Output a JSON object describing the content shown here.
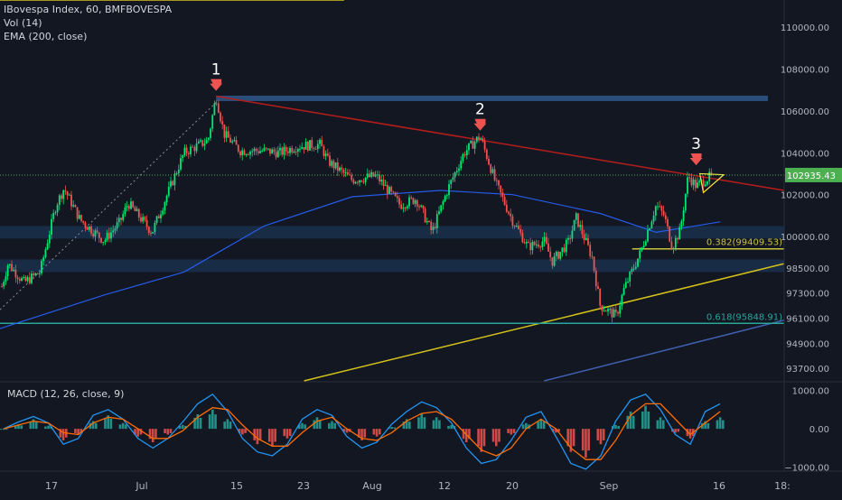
{
  "header": {
    "symbol_line": "IBovespa Index, 60, BMFBOVESPA",
    "vol_line": "Vol (14)",
    "ema_line": "EMA (200, close)"
  },
  "macd": {
    "label": "MACD (12, 26, close, 9)",
    "ticks": [
      {
        "label": "1000.00",
        "v": 1000
      },
      {
        "label": "0.00",
        "v": 0
      },
      {
        "label": "−1000.00",
        "v": -1000
      }
    ]
  },
  "price_axis": {
    "ticks": [
      {
        "label": "110000.00",
        "v": 110000
      },
      {
        "label": "108000.00",
        "v": 108000
      },
      {
        "label": "106000.00",
        "v": 106000
      },
      {
        "label": "104000.00",
        "v": 104000
      },
      {
        "label": "102000.00",
        "v": 102000
      },
      {
        "label": "100000.00",
        "v": 100000
      },
      {
        "label": "98500.00",
        "v": 98500
      },
      {
        "label": "97300.00",
        "v": 97300
      },
      {
        "label": "96100.00",
        "v": 96100
      },
      {
        "label": "94900.00",
        "v": 94900
      },
      {
        "label": "93700.00",
        "v": 93700
      }
    ],
    "current_price": "102935.43",
    "current_value": 102935.43,
    "current_color": "#4caf50"
  },
  "time_axis": {
    "labels": [
      "17",
      "Jul",
      "15",
      "23",
      "Aug",
      "12",
      "20",
      "Sep",
      "16",
      "18:"
    ]
  },
  "annotations": {
    "arrow1": "1",
    "arrow2": "2",
    "arrow3": "3",
    "fib_382": "0.382(99409.53)",
    "fib_618": "0.618(95848.91)",
    "arrow_color": "#ef5350"
  },
  "colors": {
    "background": "#131722",
    "up": "#4caf50",
    "down": "#ef5350",
    "accent_green": "#00e676",
    "ema": "#2962ff",
    "trend_yellow": "#d4c21a",
    "resistance_red": "#b71c1c",
    "zone": "#1e3a5f",
    "macd_line": "#2196f3",
    "signal_line": "#ff6d00"
  },
  "chart_data": {
    "type": "candlestick",
    "title": "IBovespa Index, 60, BMFBOVESPA",
    "x_range": [
      "Jun 12",
      "Sep 18"
    ],
    "y_range": [
      93100,
      111300
    ],
    "grid": false,
    "price_path": [
      [
        "Jun 12",
        97300
      ],
      [
        "Jun 13",
        98700
      ],
      [
        "Jun 15",
        97800
      ],
      [
        "Jun 17",
        98300
      ],
      [
        "Jun 19",
        101500
      ],
      [
        "Jun 20",
        102300
      ],
      [
        "Jun 22",
        100800
      ],
      [
        "Jun 25",
        99800
      ],
      [
        "Jun 27",
        100700
      ],
      [
        "Jun 28",
        101600
      ],
      [
        "Jul 1",
        100200
      ],
      [
        "Jul 3",
        102100
      ],
      [
        "Jul 5",
        104000
      ],
      [
        "Jul 8",
        104600
      ],
      [
        "Jul 9",
        106700
      ],
      [
        "Jul 10",
        104900
      ],
      [
        "Jul 12",
        104100
      ],
      [
        "Jul 15",
        104100
      ],
      [
        "Jul 17",
        104000
      ],
      [
        "Jul 19",
        104300
      ],
      [
        "Jul 22",
        104400
      ],
      [
        "Jul 23",
        103600
      ],
      [
        "Jul 26",
        102700
      ],
      [
        "Jul 29",
        102900
      ],
      [
        "Aug 1",
        101500
      ],
      [
        "Aug 3",
        101800
      ],
      [
        "Aug 5",
        100200
      ],
      [
        "Aug 7",
        102300
      ],
      [
        "Aug 9",
        104000
      ],
      [
        "Aug 11",
        104800
      ],
      [
        "Aug 13",
        102500
      ],
      [
        "Aug 15",
        100800
      ],
      [
        "Aug 17",
        99500
      ],
      [
        "Aug 19",
        99800
      ],
      [
        "Aug 20",
        98800
      ],
      [
        "Aug 22",
        99700
      ],
      [
        "Aug 23",
        100900
      ],
      [
        "Aug 25",
        99000
      ],
      [
        "Aug 26",
        96700
      ],
      [
        "Aug 28",
        96200
      ],
      [
        "Aug 29",
        97500
      ],
      [
        "Aug 31",
        99200
      ],
      [
        "Sep 2",
        101500
      ],
      [
        "Sep 3",
        101000
      ],
      [
        "Sep 4",
        99500
      ],
      [
        "Sep 5",
        100300
      ],
      [
        "Sep 6",
        102900
      ],
      [
        "Sep 7",
        102400
      ],
      [
        "Sep 9",
        102935
      ]
    ],
    "ema_200": [
      [
        "Jun 12",
        95600
      ],
      [
        "Jun 25",
        97200
      ],
      [
        "Jul 5",
        98300
      ],
      [
        "Jul 15",
        100500
      ],
      [
        "Jul 26",
        101900
      ],
      [
        "Aug 6",
        102200
      ],
      [
        "Aug 15",
        102000
      ],
      [
        "Aug 26",
        101100
      ],
      [
        "Sep 2",
        100200
      ],
      [
        "Sep 10",
        100700
      ]
    ],
    "resistance_line": [
      [
        "Jul 9",
        106700
      ],
      [
        "Sep 18",
        102200
      ]
    ],
    "horizontal_zone": {
      "from": "Jul 9",
      "to": "Sep 18",
      "value": 106600
    },
    "support_zones": [
      100200,
      98600
    ],
    "fibonacci": [
      {
        "label": "0.382",
        "value": 99409.53
      },
      {
        "label": "0.618",
        "value": 95848.91
      }
    ],
    "trend_channel": [
      [
        [
          "Jun 12",
          111300
        ],
        [
          "Jul 25",
          111300
        ]
      ],
      [
        [
          "Jul 20",
          93100
        ],
        [
          "Sep 18",
          98700
        ]
      ],
      [
        [
          "Aug 19",
          93100
        ],
        [
          "Sep 18",
          96000
        ]
      ]
    ],
    "macd": {
      "range": [
        -1100,
        1200
      ],
      "histogram": [
        0,
        120,
        250,
        80,
        -300,
        -150,
        200,
        350,
        150,
        -200,
        -350,
        -150,
        100,
        380,
        500,
        250,
        -150,
        -400,
        -450,
        -250,
        150,
        300,
        200,
        -100,
        -300,
        -200,
        50,
        250,
        400,
        300,
        100,
        -350,
        -600,
        -450,
        -150,
        150,
        250,
        -100,
        -600,
        -750,
        -400,
        100,
        450,
        600,
        300,
        -100,
        -250,
        200,
        300
      ],
      "macd": [
        0,
        180,
        320,
        150,
        -400,
        -250,
        350,
        500,
        250,
        -250,
        -500,
        -250,
        180,
        650,
        900,
        450,
        -250,
        -600,
        -700,
        -400,
        250,
        500,
        350,
        -200,
        -500,
        -350,
        120,
        450,
        700,
        550,
        150,
        -500,
        -900,
        -800,
        -300,
        300,
        450,
        -200,
        -900,
        -1050,
        -700,
        200,
        750,
        900,
        500,
        -150,
        -400,
        450,
        650
      ],
      "signal": [
        0,
        100,
        200,
        150,
        -100,
        -150,
        150,
        300,
        250,
        0,
        -250,
        -250,
        -50,
        300,
        550,
        500,
        100,
        -250,
        -450,
        -450,
        -100,
        200,
        300,
        0,
        -250,
        -300,
        -100,
        200,
        400,
        450,
        250,
        -150,
        -550,
        -700,
        -500,
        0,
        250,
        0,
        -500,
        -800,
        -800,
        -300,
        350,
        650,
        650,
        250,
        -150,
        150,
        450
      ]
    }
  }
}
